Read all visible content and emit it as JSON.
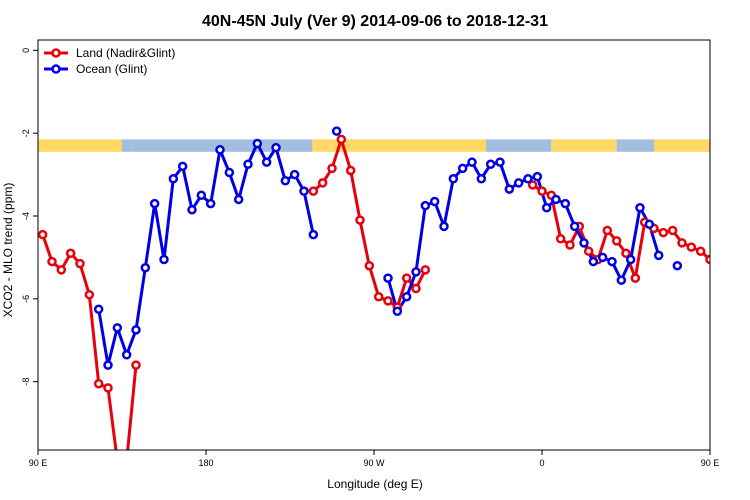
{
  "chart_data": {
    "type": "line",
    "title": "40N-45N July (Ver 9)   2014-09-06 to 2018-12-31",
    "xlabel": "Longitude (deg E)",
    "ylabel": "XCO2 - MLO trend (ppm)",
    "xlim": [
      90,
      450
    ],
    "ylim": [
      -9.65,
      0.25
    ],
    "grid": false,
    "legend_position": "top-left",
    "x_ticks": [
      {
        "value": 90,
        "label": "90 E"
      },
      {
        "value": 180,
        "label": "180"
      },
      {
        "value": 270,
        "label": "90 W"
      },
      {
        "value": 360,
        "label": "0"
      },
      {
        "value": 450,
        "label": "90 E"
      },
      {
        "value": 540,
        "label": "180"
      }
    ],
    "y_ticks": [
      {
        "value": 0,
        "label": "0"
      },
      {
        "value": -2,
        "label": "-2"
      },
      {
        "value": -4,
        "label": "-4"
      },
      {
        "value": -6,
        "label": "-6"
      },
      {
        "value": -8,
        "label": "-8"
      }
    ],
    "series": [
      {
        "name": "Land (Nadir&Glint)",
        "color": "#e8000b",
        "segments": [
          [
            [
              92.5,
              -4.45
            ],
            [
              97.5,
              -5.1
            ],
            [
              102.5,
              -5.3
            ],
            [
              107.5,
              -4.9
            ],
            [
              112.5,
              -5.15
            ],
            [
              117.5,
              -5.9
            ],
            [
              122.5,
              -8.05
            ],
            [
              127.5,
              -8.15
            ],
            [
              132.5,
              -9.9
            ]
          ],
          [
            [
              137.5,
              -9.9
            ],
            [
              142.5,
              -7.6
            ]
          ],
          [
            [
              237.5,
              -3.4
            ],
            [
              242.5,
              -3.2
            ],
            [
              247.5,
              -2.85
            ],
            [
              252.5,
              -2.15
            ],
            [
              257.5,
              -2.9
            ],
            [
              262.5,
              -4.1
            ],
            [
              267.5,
              -5.2
            ],
            [
              272.5,
              -5.95
            ],
            [
              277.5,
              -6.05
            ],
            [
              282.5,
              -6.2
            ],
            [
              287.5,
              -5.5
            ],
            [
              292.5,
              -5.75
            ],
            [
              297.5,
              -5.3
            ]
          ],
          [
            [
              355,
              -3.25
            ],
            [
              360,
              -3.4
            ],
            [
              365,
              -3.5
            ],
            [
              370,
              -4.55
            ],
            [
              375,
              -4.7
            ],
            [
              380,
              -4.25
            ],
            [
              385,
              -4.85
            ],
            [
              390,
              -5.05
            ],
            [
              395,
              -4.35
            ],
            [
              400,
              -4.6
            ],
            [
              405,
              -4.9
            ],
            [
              410,
              -5.5
            ],
            [
              415,
              -4.15
            ],
            [
              420,
              -4.3
            ],
            [
              425,
              -4.4
            ],
            [
              430,
              -4.35
            ],
            [
              435,
              -4.65
            ],
            [
              440,
              -4.75
            ],
            [
              445,
              -4.85
            ],
            [
              450,
              -5.05
            ]
          ]
        ]
      },
      {
        "name": "Ocean (Glint)",
        "color": "#0000e8",
        "segments": [
          [
            [
              122.5,
              -6.25
            ],
            [
              127.5,
              -7.6
            ],
            [
              132.5,
              -6.7
            ],
            [
              137.5,
              -7.35
            ],
            [
              142.5,
              -6.75
            ],
            [
              147.5,
              -5.25
            ],
            [
              152.5,
              -3.7
            ],
            [
              157.5,
              -5.05
            ],
            [
              162.5,
              -3.1
            ],
            [
              167.5,
              -2.8
            ],
            [
              172.5,
              -3.85
            ],
            [
              177.5,
              -3.5
            ],
            [
              182.5,
              -3.7
            ],
            [
              187.5,
              -2.4
            ],
            [
              192.5,
              -2.95
            ],
            [
              197.5,
              -3.6
            ],
            [
              202.5,
              -2.75
            ],
            [
              207.5,
              -2.25
            ],
            [
              212.5,
              -2.7
            ],
            [
              217.5,
              -2.35
            ],
            [
              222.5,
              -3.15
            ],
            [
              227.5,
              -3.0
            ],
            [
              232.5,
              -3.4
            ],
            [
              237.5,
              -4.45
            ]
          ],
          [
            [
              250,
              -1.95
            ]
          ],
          [
            [
              277.5,
              -5.5
            ],
            [
              282.5,
              -6.3
            ],
            [
              287.5,
              -5.95
            ],
            [
              292.5,
              -5.35
            ],
            [
              297.5,
              -3.75
            ],
            [
              302.5,
              -3.65
            ],
            [
              307.5,
              -4.25
            ],
            [
              312.5,
              -3.1
            ],
            [
              317.5,
              -2.85
            ],
            [
              322.5,
              -2.7
            ],
            [
              327.5,
              -3.1
            ],
            [
              332.5,
              -2.75
            ],
            [
              337.5,
              -2.7
            ],
            [
              342.5,
              -3.35
            ],
            [
              347.5,
              -3.2
            ],
            [
              352.5,
              -3.1
            ],
            [
              357.5,
              -3.05
            ],
            [
              362.5,
              -3.8
            ],
            [
              367.5,
              -3.6
            ],
            [
              372.5,
              -3.7
            ],
            [
              377.5,
              -4.25
            ],
            [
              382.5,
              -4.65
            ],
            [
              387.5,
              -5.1
            ],
            [
              392.5,
              -5.0
            ],
            [
              397.5,
              -5.1
            ],
            [
              402.5,
              -5.55
            ],
            [
              407.5,
              -5.05
            ],
            [
              412.5,
              -3.8
            ],
            [
              417.5,
              -4.2
            ],
            [
              422.5,
              -4.95
            ]
          ],
          [
            [
              432.5,
              -5.2
            ]
          ]
        ]
      }
    ],
    "surface_strip": {
      "y_top": -2.15,
      "y_bottom": -2.45,
      "colors": {
        "land": "#ffd866",
        "ocean": "#a3bde0"
      },
      "segments": [
        {
          "from": 90,
          "to": 135,
          "type": "land"
        },
        {
          "from": 135,
          "to": 140,
          "type": "ocean"
        },
        {
          "from": 140,
          "to": 237,
          "type": "ocean"
        },
        {
          "from": 237,
          "to": 330,
          "type": "land"
        },
        {
          "from": 330,
          "to": 365,
          "type": "ocean"
        },
        {
          "from": 365,
          "to": 400,
          "type": "land"
        },
        {
          "from": 400,
          "to": 420,
          "type": "ocean"
        },
        {
          "from": 420,
          "to": 455,
          "type": "land"
        },
        {
          "from": 455,
          "to": 540,
          "type": "ocean"
        }
      ]
    }
  }
}
